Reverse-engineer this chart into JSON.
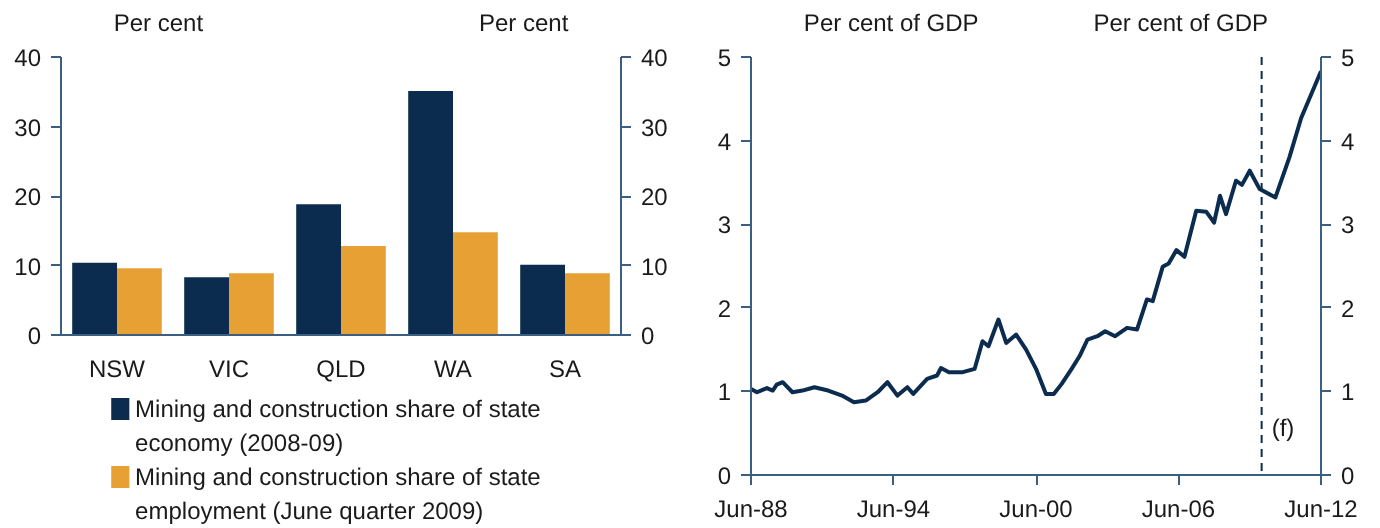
{
  "chart_data": [
    {
      "type": "bar",
      "ylabel": "Per cent",
      "y2label": "Per cent",
      "categories": [
        "NSW",
        "VIC",
        "QLD",
        "WA",
        "SA"
      ],
      "series": [
        {
          "name": "Mining and construction share of state economy (2008-09)",
          "color": "#0b2c4e",
          "values": [
            10.4,
            8.3,
            18.8,
            35.1,
            10.1
          ]
        },
        {
          "name": "Mining and construction share of state employment (June quarter 2009)",
          "color": "#e6a033",
          "values": [
            9.6,
            8.9,
            12.8,
            14.8,
            8.9
          ]
        }
      ],
      "ylim": [
        0,
        40
      ],
      "yticks": [
        0,
        10,
        20,
        30,
        40
      ],
      "y2lim": [
        0,
        40
      ],
      "y2ticks": [
        0,
        10,
        20,
        30,
        40
      ],
      "grid": false,
      "legend": "bottom"
    },
    {
      "type": "line",
      "ylabel": "Per cent of GDP",
      "y2label": "Per cent of GDP",
      "x": [
        "1988-06",
        "1988-09",
        "1989-02",
        "1989-05",
        "1989-07",
        "1989-10",
        "1990-03",
        "1990-08",
        "1991-02",
        "1991-09",
        "1992-04",
        "1992-10",
        "1993-04",
        "1993-10",
        "1994-03",
        "1994-08",
        "1995-01",
        "1995-04",
        "1995-11",
        "1996-04",
        "1996-06",
        "1996-10",
        "1997-05",
        "1997-11",
        "1998-03",
        "1998-06",
        "1998-11",
        "1999-03",
        "1999-08",
        "2000-01",
        "2000-06",
        "2000-11",
        "2001-03",
        "2001-07",
        "2001-12",
        "2002-04",
        "2002-08",
        "2003-01",
        "2003-05",
        "2003-10",
        "2004-04",
        "2004-09",
        "2005-02",
        "2005-05",
        "2005-10",
        "2006-01",
        "2006-05",
        "2006-09",
        "2007-03",
        "2007-08",
        "2007-12",
        "2008-03",
        "2008-06",
        "2008-11",
        "2009-02",
        "2009-06",
        "2009-11",
        "2010-07",
        "2011-02",
        "2011-08",
        "2012-06"
      ],
      "series": [
        {
          "color": "#0b2c4e",
          "values": [
            1.03,
            0.99,
            1.04,
            1.01,
            1.08,
            1.11,
            0.99,
            1.01,
            1.05,
            1.01,
            0.95,
            0.87,
            0.89,
            0.99,
            1.11,
            0.95,
            1.05,
            0.97,
            1.15,
            1.19,
            1.28,
            1.23,
            1.23,
            1.27,
            1.6,
            1.54,
            1.86,
            1.58,
            1.68,
            1.5,
            1.27,
            0.97,
            0.97,
            1.09,
            1.27,
            1.42,
            1.62,
            1.66,
            1.72,
            1.66,
            1.76,
            1.74,
            2.1,
            2.08,
            2.49,
            2.53,
            2.69,
            2.61,
            3.16,
            3.15,
            3.02,
            3.34,
            3.12,
            3.52,
            3.47,
            3.64,
            3.42,
            3.32,
            3.8,
            4.27,
            4.83
          ]
        }
      ],
      "xlim": [
        "1988-06",
        "2012-06"
      ],
      "xticks": [
        {
          "value": "1988-06",
          "label": "Jun-88"
        },
        {
          "value": "1994-06",
          "label": "Jun-94"
        },
        {
          "value": "2000-06",
          "label": "Jun-00"
        },
        {
          "value": "2006-06",
          "label": "Jun-06"
        },
        {
          "value": "2012-06",
          "label": "Jun-12"
        }
      ],
      "ylim": [
        0,
        5
      ],
      "yticks": [
        0,
        1,
        2,
        3,
        4,
        5
      ],
      "y2lim": [
        0,
        5
      ],
      "y2ticks": [
        0,
        1,
        2,
        3,
        4,
        5
      ],
      "grid": false,
      "ref_lines": [
        {
          "axis": "x",
          "value": "2009-12",
          "label": "(f)",
          "line_style": "dashed",
          "color": "#0b2c4e"
        }
      ]
    }
  ]
}
